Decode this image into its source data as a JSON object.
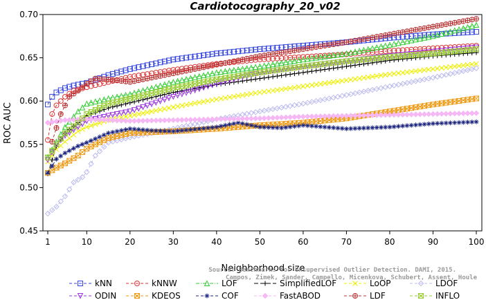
{
  "chart_data": {
    "type": "line",
    "title": "Cardiotocography_20_v02",
    "xlabel": "Neighborhood size",
    "ylabel": "ROC AUC",
    "xlim": [
      1,
      100
    ],
    "ylim": [
      0.45,
      0.7
    ],
    "xticks": [
      1,
      10,
      20,
      30,
      40,
      50,
      60,
      70,
      80,
      90,
      100
    ],
    "yticks": [
      "0.45",
      "0.50",
      "0.55",
      "0.60",
      "0.65",
      "0.70"
    ],
    "credit": [
      "Source: Benchmarks for Unsupervised Outlier Detection. DAMI, 2015.",
      "Campos, Zimek, Sander, Campello, Micenkova, Schubert, Assent, Houle"
    ],
    "legend_position": "bottom",
    "series": [
      {
        "name": "kNN",
        "color": "#3344dd",
        "marker": "square",
        "dash": "4,3",
        "points": [
          [
            1,
            0.596
          ],
          [
            2,
            0.605
          ],
          [
            3,
            0.61
          ],
          [
            5,
            0.615
          ],
          [
            7,
            0.618
          ],
          [
            10,
            0.621
          ],
          [
            15,
            0.63
          ],
          [
            20,
            0.637
          ],
          [
            30,
            0.648
          ],
          [
            40,
            0.655
          ],
          [
            50,
            0.66
          ],
          [
            60,
            0.664
          ],
          [
            70,
            0.668
          ],
          [
            80,
            0.673
          ],
          [
            90,
            0.677
          ],
          [
            100,
            0.68
          ]
        ]
      },
      {
        "name": "kNNW",
        "color": "#dd3333",
        "marker": "circle",
        "dash": "4,3",
        "points": [
          [
            1,
            0.555
          ],
          [
            2,
            0.585
          ],
          [
            3,
            0.595
          ],
          [
            5,
            0.605
          ],
          [
            7,
            0.612
          ],
          [
            10,
            0.616
          ],
          [
            15,
            0.622
          ],
          [
            20,
            0.628
          ],
          [
            30,
            0.636
          ],
          [
            40,
            0.643
          ],
          [
            50,
            0.648
          ],
          [
            60,
            0.651
          ],
          [
            70,
            0.654
          ],
          [
            80,
            0.658
          ],
          [
            90,
            0.661
          ],
          [
            100,
            0.664
          ]
        ]
      },
      {
        "name": "LOF",
        "color": "#33cc33",
        "marker": "triangle",
        "dash": "5,2,1,2",
        "points": [
          [
            1,
            0.535
          ],
          [
            3,
            0.553
          ],
          [
            5,
            0.57
          ],
          [
            8,
            0.588
          ],
          [
            10,
            0.597
          ],
          [
            15,
            0.603
          ],
          [
            20,
            0.608
          ],
          [
            30,
            0.622
          ],
          [
            40,
            0.633
          ],
          [
            50,
            0.64
          ],
          [
            60,
            0.648
          ],
          [
            70,
            0.655
          ],
          [
            80,
            0.665
          ],
          [
            90,
            0.675
          ],
          [
            100,
            0.688
          ]
        ]
      },
      {
        "name": "SimplifiedLOF",
        "color": "#000000",
        "marker": "plus",
        "dash": "6,3",
        "points": [
          [
            1,
            0.516
          ],
          [
            3,
            0.548
          ],
          [
            5,
            0.563
          ],
          [
            8,
            0.575
          ],
          [
            10,
            0.583
          ],
          [
            15,
            0.592
          ],
          [
            20,
            0.598
          ],
          [
            30,
            0.61
          ],
          [
            40,
            0.619
          ],
          [
            50,
            0.626
          ],
          [
            60,
            0.633
          ],
          [
            70,
            0.64
          ],
          [
            80,
            0.647
          ],
          [
            90,
            0.652
          ],
          [
            100,
            0.656
          ]
        ]
      },
      {
        "name": "LoOP",
        "color": "#eeee00",
        "marker": "x",
        "dash": "4,3",
        "points": [
          [
            1,
            0.53
          ],
          [
            3,
            0.544
          ],
          [
            5,
            0.553
          ],
          [
            8,
            0.565
          ],
          [
            10,
            0.57
          ],
          [
            15,
            0.578
          ],
          [
            20,
            0.583
          ],
          [
            30,
            0.593
          ],
          [
            40,
            0.602
          ],
          [
            50,
            0.61
          ],
          [
            60,
            0.617
          ],
          [
            70,
            0.624
          ],
          [
            80,
            0.631
          ],
          [
            90,
            0.637
          ],
          [
            100,
            0.643
          ]
        ]
      },
      {
        "name": "LDOF",
        "color": "#bbbbee",
        "marker": "diamond",
        "dash": "4,3",
        "points": [
          [
            1,
            0.47
          ],
          [
            3,
            0.478
          ],
          [
            5,
            0.49
          ],
          [
            7,
            0.506
          ],
          [
            9,
            0.512
          ],
          [
            10,
            0.518
          ],
          [
            12,
            0.537
          ],
          [
            15,
            0.552
          ],
          [
            20,
            0.558
          ],
          [
            30,
            0.568
          ],
          [
            40,
            0.579
          ],
          [
            50,
            0.588
          ],
          [
            60,
            0.597
          ],
          [
            70,
            0.607
          ],
          [
            80,
            0.617
          ],
          [
            90,
            0.627
          ],
          [
            100,
            0.638
          ]
        ]
      },
      {
        "name": "ODIN",
        "color": "#9933dd",
        "marker": "triangle-down",
        "dash": "4,3",
        "points": [
          [
            1,
            0.532
          ],
          [
            3,
            0.55
          ],
          [
            5,
            0.56
          ],
          [
            8,
            0.57
          ],
          [
            10,
            0.577
          ],
          [
            15,
            0.583
          ],
          [
            20,
            0.588
          ],
          [
            30,
            0.605
          ],
          [
            40,
            0.62
          ],
          [
            50,
            0.633
          ],
          [
            60,
            0.64
          ],
          [
            70,
            0.646
          ],
          [
            80,
            0.652
          ],
          [
            90,
            0.657
          ],
          [
            100,
            0.662
          ]
        ]
      },
      {
        "name": "KDEOS",
        "color": "#ee9911",
        "marker": "square-x",
        "dash": "4,3",
        "points": [
          [
            1,
            0.517
          ],
          [
            3,
            0.523
          ],
          [
            5,
            0.528
          ],
          [
            8,
            0.537
          ],
          [
            10,
            0.545
          ],
          [
            12,
            0.55
          ],
          [
            15,
            0.557
          ],
          [
            20,
            0.563
          ],
          [
            30,
            0.565
          ],
          [
            40,
            0.568
          ],
          [
            50,
            0.572
          ],
          [
            60,
            0.575
          ],
          [
            70,
            0.58
          ],
          [
            80,
            0.588
          ],
          [
            90,
            0.596
          ],
          [
            100,
            0.603
          ]
        ]
      },
      {
        "name": "COF",
        "color": "#1a237e",
        "marker": "star",
        "dash": "4,3",
        "points": [
          [
            1,
            0.517
          ],
          [
            3,
            0.533
          ],
          [
            5,
            0.54
          ],
          [
            8,
            0.548
          ],
          [
            10,
            0.552
          ],
          [
            15,
            0.563
          ],
          [
            20,
            0.568
          ],
          [
            25,
            0.566
          ],
          [
            30,
            0.565
          ],
          [
            40,
            0.57
          ],
          [
            45,
            0.575
          ],
          [
            50,
            0.57
          ],
          [
            55,
            0.569
          ],
          [
            60,
            0.572
          ],
          [
            70,
            0.568
          ],
          [
            80,
            0.57
          ],
          [
            90,
            0.574
          ],
          [
            100,
            0.576
          ]
        ]
      },
      {
        "name": "FastABOD",
        "color": "#f5b8f5",
        "marker": "diamond-filled",
        "dash": "4,3",
        "points": [
          [
            1,
            0.575
          ],
          [
            5,
            0.578
          ],
          [
            10,
            0.579
          ],
          [
            15,
            0.578
          ],
          [
            20,
            0.577
          ],
          [
            30,
            0.578
          ],
          [
            40,
            0.579
          ],
          [
            50,
            0.58
          ],
          [
            60,
            0.582
          ],
          [
            70,
            0.583
          ],
          [
            80,
            0.584
          ],
          [
            90,
            0.585
          ],
          [
            100,
            0.586
          ]
        ]
      },
      {
        "name": "LDF",
        "color": "#bb3333",
        "marker": "circle-plus",
        "dash": "4,3",
        "points": [
          [
            2,
            0.553
          ],
          [
            4,
            0.585
          ],
          [
            6,
            0.605
          ],
          [
            8,
            0.612
          ],
          [
            10,
            0.62
          ],
          [
            12,
            0.626
          ],
          [
            15,
            0.625
          ],
          [
            20,
            0.622
          ],
          [
            30,
            0.632
          ],
          [
            40,
            0.642
          ],
          [
            50,
            0.652
          ],
          [
            60,
            0.66
          ],
          [
            70,
            0.668
          ],
          [
            80,
            0.677
          ],
          [
            90,
            0.686
          ],
          [
            100,
            0.695
          ]
        ]
      },
      {
        "name": "INFLO",
        "color": "#99cc33",
        "marker": "square-x",
        "dash": "4,3",
        "points": [
          [
            1,
            0.535
          ],
          [
            3,
            0.55
          ],
          [
            5,
            0.563
          ],
          [
            8,
            0.575
          ],
          [
            10,
            0.585
          ],
          [
            15,
            0.597
          ],
          [
            20,
            0.603
          ],
          [
            30,
            0.615
          ],
          [
            40,
            0.625
          ],
          [
            50,
            0.633
          ],
          [
            60,
            0.64
          ],
          [
            70,
            0.646
          ],
          [
            80,
            0.651
          ],
          [
            90,
            0.655
          ],
          [
            100,
            0.66
          ]
        ]
      }
    ]
  }
}
